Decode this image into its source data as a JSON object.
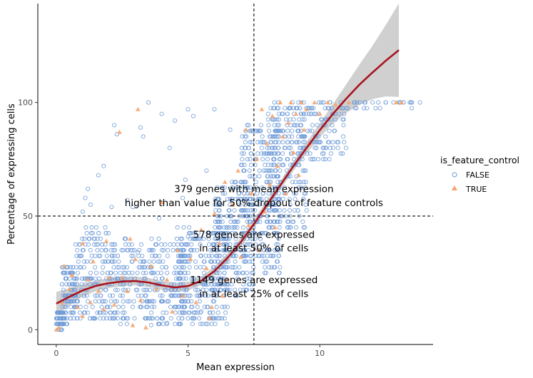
{
  "chart_data": {
    "type": "scatter",
    "xlabel": "Mean expression",
    "ylabel": "Percentage of expressing cells",
    "xlim": [
      -0.7,
      14.3
    ],
    "ylim": [
      -6.5,
      143.5
    ],
    "x_ticks": [
      0,
      5,
      10
    ],
    "y_ticks": [
      0,
      50,
      100
    ],
    "grid": false,
    "legend": {
      "title": "is_feature_control",
      "position": "right",
      "entries": [
        {
          "label": "FALSE",
          "shape": "open-circle",
          "color": "#6f9bd8"
        },
        {
          "label": "TRUE",
          "shape": "triangle",
          "color": "#f5a46b"
        }
      ]
    },
    "series": [
      {
        "name": "FALSE",
        "shape": "open-circle",
        "color": "#6f9bd8",
        "note_count_estimate": 2000,
        "bands": [
          {
            "x": [
              0.0,
              0.3
            ],
            "y": [
              0,
              8
            ],
            "n": 60
          },
          {
            "x": [
              0.2,
              0.8
            ],
            "y": [
              3,
              28
            ],
            "n": 110
          },
          {
            "x": [
              0.7,
              2.0
            ],
            "y": [
              4,
              45
            ],
            "n": 150
          },
          {
            "x": [
              2.0,
              5.0
            ],
            "y": [
              3,
              40
            ],
            "n": 320
          },
          {
            "x": [
              4.5,
              6.5
            ],
            "y": [
              3,
              45
            ],
            "n": 260
          },
          {
            "x": [
              6.0,
              7.5
            ],
            "y": [
              15,
              65
            ],
            "n": 230
          },
          {
            "x": [
              7.0,
              8.5
            ],
            "y": [
              25,
              90
            ],
            "n": 250
          },
          {
            "x": [
              8.0,
              9.5
            ],
            "y": [
              45,
              100
            ],
            "n": 200
          },
          {
            "x": [
              9.0,
              11.0
            ],
            "y": [
              75,
              100
            ],
            "n": 130
          },
          {
            "x": [
              11.0,
              13.5
            ],
            "y": [
              98,
              100
            ],
            "n": 25
          }
        ],
        "points": [
          [
            3.5,
            100
          ],
          [
            5.0,
            97
          ],
          [
            6.0,
            97
          ],
          [
            5.2,
            94
          ],
          [
            4.0,
            95
          ],
          [
            2.2,
            90
          ],
          [
            3.2,
            89
          ],
          [
            4.5,
            92
          ],
          [
            2.3,
            86
          ],
          [
            1.8,
            72
          ],
          [
            1.6,
            68
          ],
          [
            1.2,
            62
          ],
          [
            1.1,
            58
          ],
          [
            4.3,
            80
          ],
          [
            4.9,
            66
          ],
          [
            3.3,
            85
          ],
          [
            6.6,
            88
          ],
          [
            13.8,
            100
          ],
          [
            12.0,
            100
          ],
          [
            11.3,
            100
          ],
          [
            12.5,
            100
          ],
          [
            3.9,
            49
          ],
          [
            2.9,
            54
          ],
          [
            5.7,
            70
          ],
          [
            2.6,
            40
          ],
          [
            5.0,
            41
          ],
          [
            4.8,
            58
          ],
          [
            3.1,
            34
          ],
          [
            2.1,
            54
          ],
          [
            1.3,
            55
          ],
          [
            1.0,
            52
          ],
          [
            2.7,
            57
          ],
          [
            6.2,
            25
          ],
          [
            5.5,
            8
          ],
          [
            4.2,
            3
          ],
          [
            3.6,
            2
          ]
        ]
      },
      {
        "name": "TRUE",
        "shape": "triangle",
        "color": "#f5a46b",
        "points": [
          [
            0.0,
            0
          ],
          [
            0.1,
            1
          ],
          [
            0.2,
            12
          ],
          [
            0.3,
            28
          ],
          [
            0.5,
            18
          ],
          [
            0.6,
            24
          ],
          [
            0.8,
            10
          ],
          [
            1.0,
            38
          ],
          [
            1.2,
            22
          ],
          [
            1.3,
            12
          ],
          [
            1.4,
            30
          ],
          [
            1.6,
            17
          ],
          [
            1.8,
            9
          ],
          [
            1.9,
            39
          ],
          [
            2.0,
            23
          ],
          [
            2.2,
            11
          ],
          [
            2.4,
            87
          ],
          [
            2.5,
            23
          ],
          [
            2.7,
            17
          ],
          [
            2.8,
            40
          ],
          [
            3.1,
            97
          ],
          [
            3.2,
            13
          ],
          [
            3.4,
            1
          ],
          [
            3.6,
            28
          ],
          [
            3.8,
            18
          ],
          [
            4.0,
            56
          ],
          [
            4.2,
            22
          ],
          [
            4.4,
            8
          ],
          [
            4.6,
            35
          ],
          [
            4.8,
            15
          ],
          [
            5.1,
            31
          ],
          [
            5.3,
            12
          ],
          [
            5.5,
            44
          ],
          [
            5.7,
            27
          ],
          [
            5.9,
            10
          ],
          [
            6.0,
            51
          ],
          [
            6.2,
            38
          ],
          [
            6.4,
            65
          ],
          [
            6.5,
            22
          ],
          [
            6.7,
            55
          ],
          [
            6.9,
            70
          ],
          [
            7.0,
            32
          ],
          [
            7.2,
            88
          ],
          [
            7.3,
            46
          ],
          [
            7.4,
            60
          ],
          [
            7.6,
            75
          ],
          [
            7.7,
            35
          ],
          [
            7.8,
            97
          ],
          [
            7.9,
            52
          ],
          [
            8.0,
            82
          ],
          [
            8.1,
            64
          ],
          [
            8.2,
            94
          ],
          [
            8.3,
            45
          ],
          [
            8.4,
            72
          ],
          [
            8.5,
            100
          ],
          [
            8.6,
            85
          ],
          [
            8.7,
            60
          ],
          [
            8.8,
            91
          ],
          [
            8.9,
            100
          ],
          [
            9.0,
            78
          ],
          [
            9.1,
            95
          ],
          [
            9.2,
            68
          ],
          [
            9.3,
            100
          ],
          [
            9.4,
            88
          ],
          [
            9.5,
            97
          ],
          [
            9.6,
            82
          ],
          [
            9.8,
            100
          ],
          [
            10.0,
            95
          ],
          [
            10.3,
            100
          ],
          [
            10.6,
            99
          ],
          [
            11.1,
            100
          ],
          [
            12.9,
            100
          ],
          [
            13.1,
            100
          ],
          [
            3.0,
            31
          ],
          [
            5.8,
            5
          ],
          [
            2.9,
            2
          ],
          [
            6.3,
            15
          ],
          [
            1.0,
            6
          ]
        ]
      }
    ],
    "smooth_fit": {
      "color": "#a8141f",
      "band_color": "#c8c8c8",
      "x": [
        0,
        0.5,
        1,
        1.5,
        2,
        2.5,
        3,
        3.5,
        4,
        4.5,
        5,
        5.5,
        6,
        6.5,
        7,
        7.5,
        8,
        8.5,
        9,
        9.5,
        10,
        10.5,
        11,
        11.5,
        12,
        12.5,
        13
      ],
      "y": [
        11.5,
        14.5,
        17.3,
        19.3,
        20.5,
        21.2,
        21.4,
        20.8,
        19.5,
        18.6,
        19.2,
        21.5,
        25.8,
        31.6,
        38.5,
        46.5,
        55.0,
        63.5,
        72.0,
        80.0,
        87.8,
        95.0,
        101.6,
        107.8,
        113.2,
        118.3,
        123.0
      ],
      "se": [
        2.6,
        1.9,
        1.4,
        1.2,
        1.1,
        1.0,
        1.0,
        1.0,
        1.0,
        1.0,
        1.0,
        1.0,
        1.0,
        1.0,
        1.0,
        1.0,
        1.0,
        1.0,
        1.1,
        1.3,
        1.6,
        2.2,
        3.2,
        4.5,
        6.0,
        8.0,
        10.5
      ]
    },
    "reference_lines": [
      {
        "orientation": "vertical",
        "x": 7.5,
        "style": "dashed"
      },
      {
        "orientation": "horizontal",
        "y": 50,
        "style": "dashed"
      }
    ],
    "annotations": [
      {
        "x": 7.5,
        "y": 62,
        "text": "379 genes with mean expression"
      },
      {
        "x": 7.5,
        "y": 56,
        "text": "higher than value for 50% dropout of feature controls"
      },
      {
        "x": 7.5,
        "y": 42,
        "text": "578 genes are expressed"
      },
      {
        "x": 7.5,
        "y": 36,
        "text": "in at least 50% of cells"
      },
      {
        "x": 7.5,
        "y": 22,
        "text": "1149 genes are expressed"
      },
      {
        "x": 7.5,
        "y": 16,
        "text": "in at least 25% of cells"
      }
    ]
  }
}
